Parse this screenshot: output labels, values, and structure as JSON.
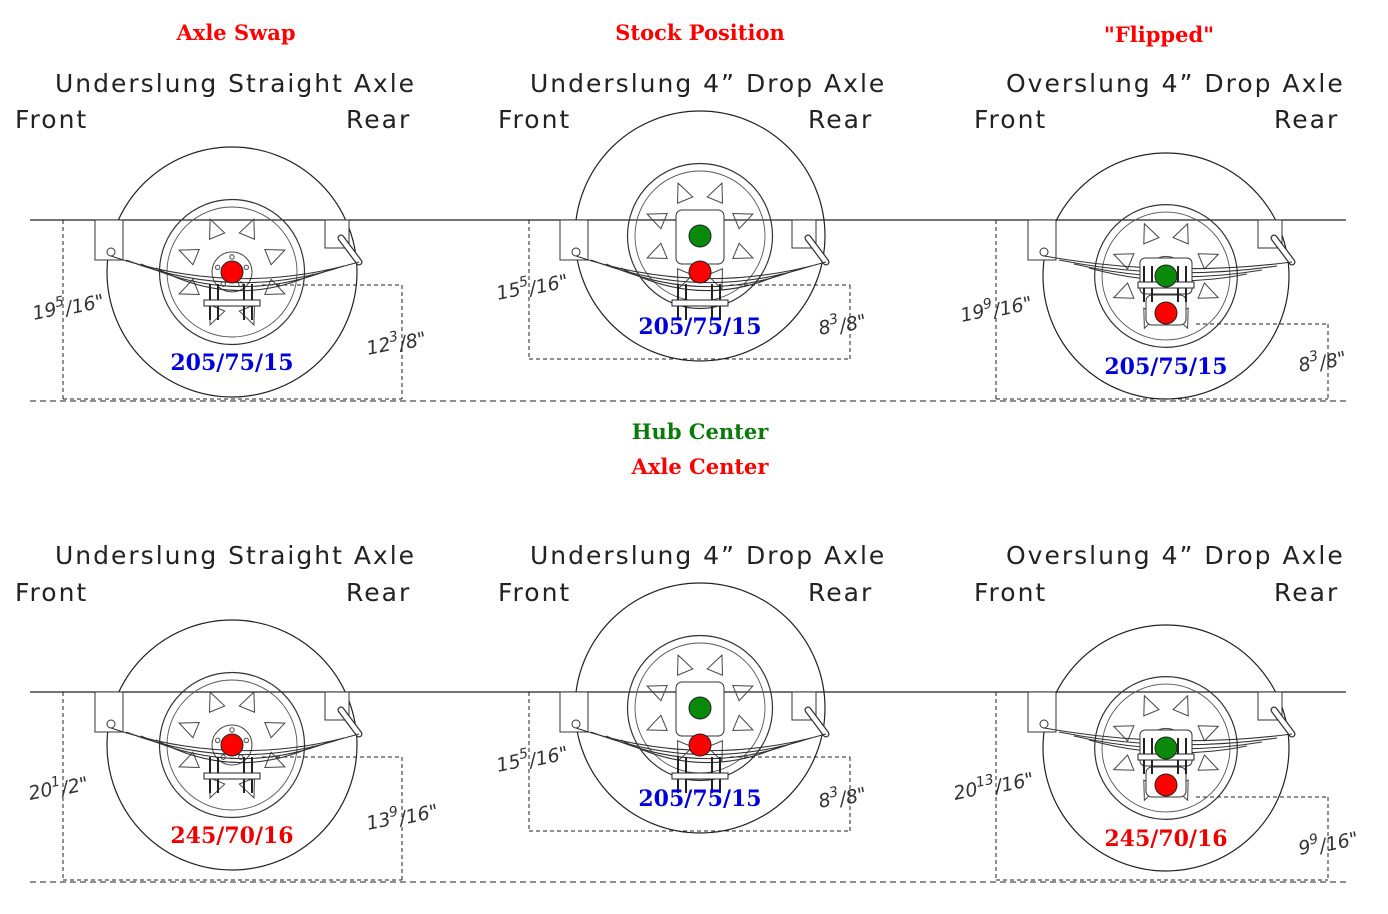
{
  "headers": [
    {
      "text": "Axle Swap",
      "color": "#ff0000"
    },
    {
      "text": "Stock Position",
      "color": "#ff0000"
    },
    {
      "text": "\"Flipped\"",
      "color": "#ff0000"
    }
  ],
  "legend": {
    "hub_center": {
      "text": "Hub Center",
      "color": "#0a7a0a"
    },
    "axle_center": {
      "text": "Axle Center",
      "color": "#ff0000"
    }
  },
  "labels": {
    "front": "Front",
    "rear": "Rear"
  },
  "rows": [
    {
      "panels": [
        {
          "caption": "Underslung Straight Axle",
          "tire": "205/75/15",
          "tire_color": "#0000dd",
          "left_meas": {
            "whole": "19",
            "num": "5",
            "den": "16\""
          },
          "right_meas": {
            "whole": "12",
            "num": "3",
            "den": "8\""
          }
        },
        {
          "caption": "Underslung 4” Drop Axle",
          "tire": "205/75/15",
          "tire_color": "#0000dd",
          "left_meas": {
            "whole": "15",
            "num": "5",
            "den": "16\""
          },
          "right_meas": {
            "whole": "8",
            "num": "3",
            "den": "8\""
          }
        },
        {
          "caption": "Overslung 4” Drop Axle",
          "tire": "205/75/15",
          "tire_color": "#0000dd",
          "left_meas": {
            "whole": "19",
            "num": "9",
            "den": "16\""
          },
          "right_meas": {
            "whole": "8",
            "num": "3",
            "den": "8\""
          }
        }
      ]
    },
    {
      "panels": [
        {
          "caption": "Underslung Straight Axle",
          "tire": "245/70/16",
          "tire_color": "#ee0000",
          "left_meas": {
            "whole": "20",
            "num": "1",
            "den": "2\""
          },
          "right_meas": {
            "whole": "13",
            "num": "9",
            "den": "16\""
          }
        },
        {
          "caption": "Underslung 4” Drop Axle",
          "tire": "205/75/15",
          "tire_color": "#0000dd",
          "left_meas": {
            "whole": "15",
            "num": "5",
            "den": "16\""
          },
          "right_meas": {
            "whole": "8",
            "num": "3",
            "den": "8\""
          }
        },
        {
          "caption": "Overslung 4” Drop Axle",
          "tire": "245/70/16",
          "tire_color": "#ee0000",
          "left_meas": {
            "whole": "20",
            "num": "13",
            "den": "16\""
          },
          "right_meas": {
            "whole": "9",
            "num": "9",
            "den": "16\""
          }
        }
      ]
    }
  ],
  "colors": {
    "hub": "#0a8a0a",
    "axle": "#ff0000",
    "line": "#222222"
  }
}
